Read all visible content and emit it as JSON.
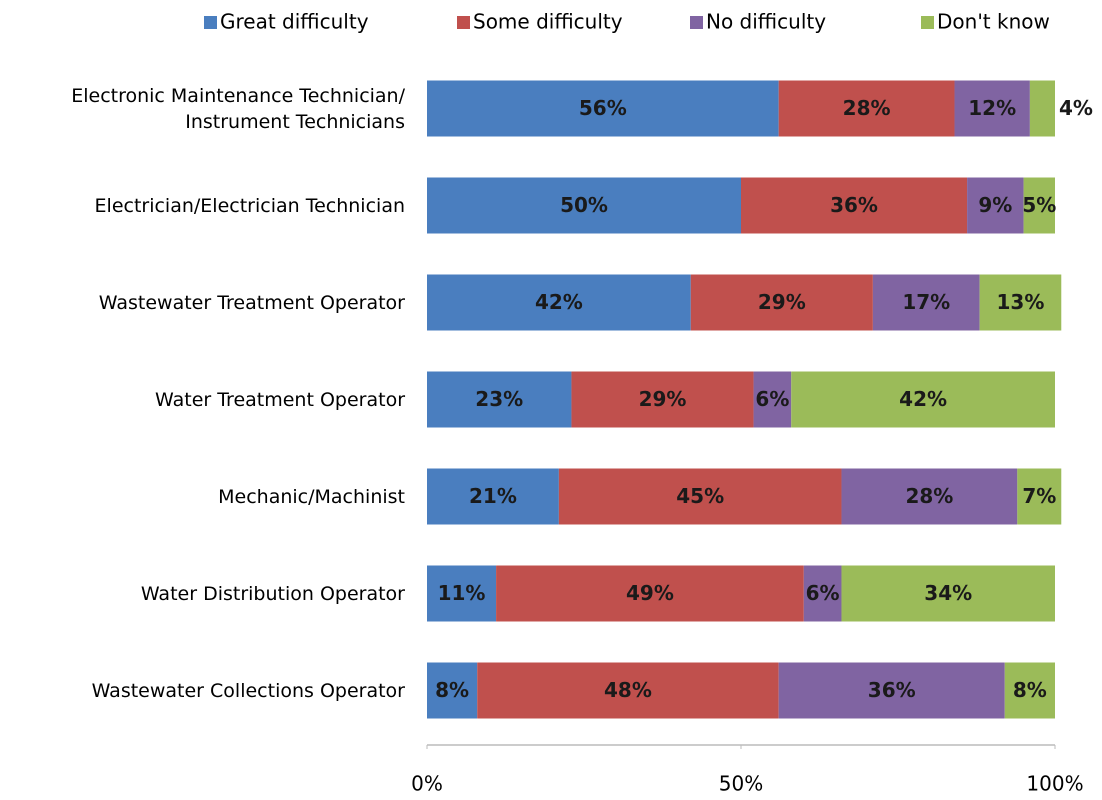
{
  "chart_data": {
    "type": "stacked_bar_horizontal",
    "categories": [
      "Electronic Maintenance Technician/ Instrument Technicians",
      "Electrician/Electrician Technician",
      "Wastewater Treatment Operator",
      "Water Treatment Operator",
      "Mechanic/Machinist",
      "Water Distribution Operator",
      "Wastewater Collections Operator"
    ],
    "series": [
      {
        "name": "Great difficulty",
        "color": "#4a7ebf",
        "values": [
          56,
          50,
          42,
          23,
          21,
          11,
          8
        ],
        "value_labels": [
          "56%",
          "50%",
          "42%",
          "23%",
          "21%",
          "11%",
          "8%"
        ]
      },
      {
        "name": "Some difficulty",
        "color": "#c0504d",
        "values": [
          28,
          36,
          29,
          29,
          45,
          49,
          48
        ],
        "value_labels": [
          "28%",
          "36%",
          "29%",
          "29%",
          "45%",
          "49%",
          "48%"
        ]
      },
      {
        "name": "No difficulty",
        "color": "#8064a2",
        "values": [
          12,
          9,
          17,
          6,
          28,
          6,
          36
        ],
        "value_labels": [
          "12%",
          "9%",
          "17%",
          "6%",
          "28%",
          "6%",
          "36%"
        ]
      },
      {
        "name": "Don't know",
        "color": "#9bbb59",
        "values": [
          4,
          5,
          13,
          42,
          7,
          34,
          8
        ],
        "value_labels": [
          "4%",
          "5%",
          "13%",
          "42%",
          "7%",
          "34%",
          "8%"
        ]
      }
    ],
    "xlim": [
      0,
      100
    ],
    "xticks": [
      {
        "value": 0,
        "label": "0%"
      },
      {
        "value": 50,
        "label": "50%"
      },
      {
        "value": 100,
        "label": "100%"
      }
    ],
    "legend": "top",
    "grid": false
  }
}
